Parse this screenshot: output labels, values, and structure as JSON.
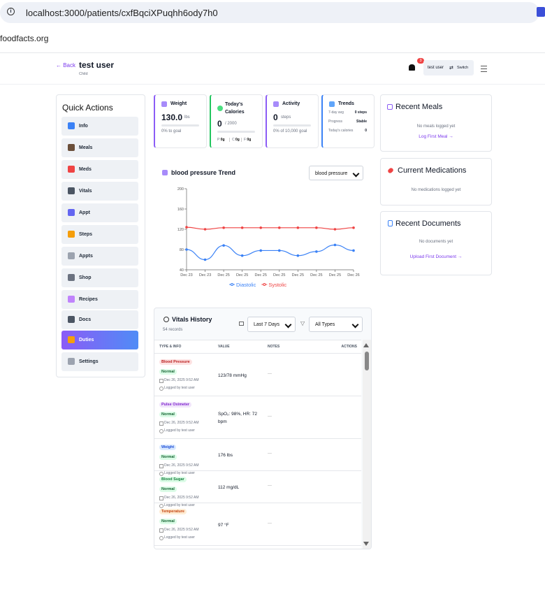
{
  "browser": {
    "url": "localhost:3000/patients/cxfBqciXPuqhh6ody7h0",
    "bookmark": "foodfacts.org"
  },
  "header": {
    "back": "← Back",
    "name": "test user",
    "role": "Child",
    "notifications": "3",
    "user": "test user",
    "switch": "Switch"
  },
  "quick_actions": {
    "title": "Quick Actions",
    "items": [
      "Info",
      "Meals",
      "Meds",
      "Vitals",
      "Appt",
      "Steps",
      "Appts",
      "Shop",
      "Recipes",
      "Docs",
      "Duties",
      "Settings"
    ]
  },
  "stats": {
    "weight": {
      "label": "Weight",
      "value": "130.0",
      "unit": "lbs",
      "note": "0% to goal"
    },
    "calories": {
      "label": "Today's Calories",
      "value": "0",
      "target": "/ 2000",
      "macros": [
        {
          "label": "P:",
          "value": "0g"
        },
        {
          "label": "C:",
          "value": "0g"
        },
        {
          "label": "F:",
          "value": "0g"
        }
      ]
    },
    "activity": {
      "label": "Activity",
      "value": "0",
      "unit": "steps",
      "note": "0% of 10,000 goal"
    },
    "trends": {
      "label": "Trends",
      "rows": [
        {
          "label": "7-day avg",
          "value": "0 steps"
        },
        {
          "label": "Progress",
          "value": "Stable"
        },
        {
          "label": "Today's calories",
          "value": "0"
        }
      ]
    }
  },
  "chart_data": {
    "type": "line",
    "title": "blood pressure Trend",
    "selector": "blood pressure",
    "categories": [
      "Dec 23",
      "Dec 23",
      "Dec 25",
      "Dec 25",
      "Dec 25",
      "Dec 25",
      "Dec 25",
      "Dec 25",
      "Dec 25",
      "Dec 26"
    ],
    "series": [
      {
        "name": "Diastolic",
        "color": "#3b82f6",
        "values": [
          80,
          60,
          88,
          68,
          78,
          78,
          68,
          76,
          89,
          78
        ]
      },
      {
        "name": "Systolic",
        "color": "#ef4444",
        "values": [
          124,
          120,
          123,
          123,
          123,
          123,
          123,
          123,
          120,
          123
        ]
      }
    ],
    "ylim": [
      40,
      200
    ],
    "yticks": [
      40,
      80,
      120,
      160,
      200
    ],
    "grid": false
  },
  "vitals_history": {
    "title": "Vitals History",
    "count": "54 records",
    "range_filter": "Last 7 Days",
    "type_filter": "All Types",
    "columns": [
      "TYPE & INFO",
      "VALUE",
      "NOTES",
      "ACTIONS"
    ],
    "rows": [
      {
        "type": "Blood Pressure",
        "status": "Normal",
        "date": "Dec 26, 2025 9:52 AM",
        "logged_by": "Logged by test user",
        "value": "123/78 mmHg",
        "notes": "—"
      },
      {
        "type": "Pulse Oximeter",
        "status": "Normal",
        "date": "Dec 26, 2025 9:52 AM",
        "logged_by": "Logged by test user",
        "value": "SpO₂: 98%, HR: 72 bpm",
        "notes": "—"
      },
      {
        "type": "Weight",
        "status": "Normal",
        "date": "Dec 26, 2025 9:52 AM",
        "logged_by": "Logged by test user",
        "value": "176 lbs",
        "notes": "—"
      },
      {
        "type": "Blood Sugar",
        "status": "Normal",
        "date": "Dec 26, 2025 9:52 AM",
        "logged_by": "Logged by test user",
        "value": "112 mg/dL",
        "notes": "—"
      },
      {
        "type": "Temperature",
        "status": "Normal",
        "date": "Dec 26, 2025 9:52 AM",
        "logged_by": "Logged by test user",
        "value": "97 °F",
        "notes": "—"
      }
    ]
  },
  "recent_meals": {
    "title": "Recent Meals",
    "empty": "No meals logged yet",
    "link": "Log First Meal →"
  },
  "current_medications": {
    "title": "Current Medications",
    "empty": "No medications logged yet"
  },
  "recent_documents": {
    "title": "Recent Documents",
    "empty": "No documents yet",
    "link": "Upload First Document →"
  }
}
